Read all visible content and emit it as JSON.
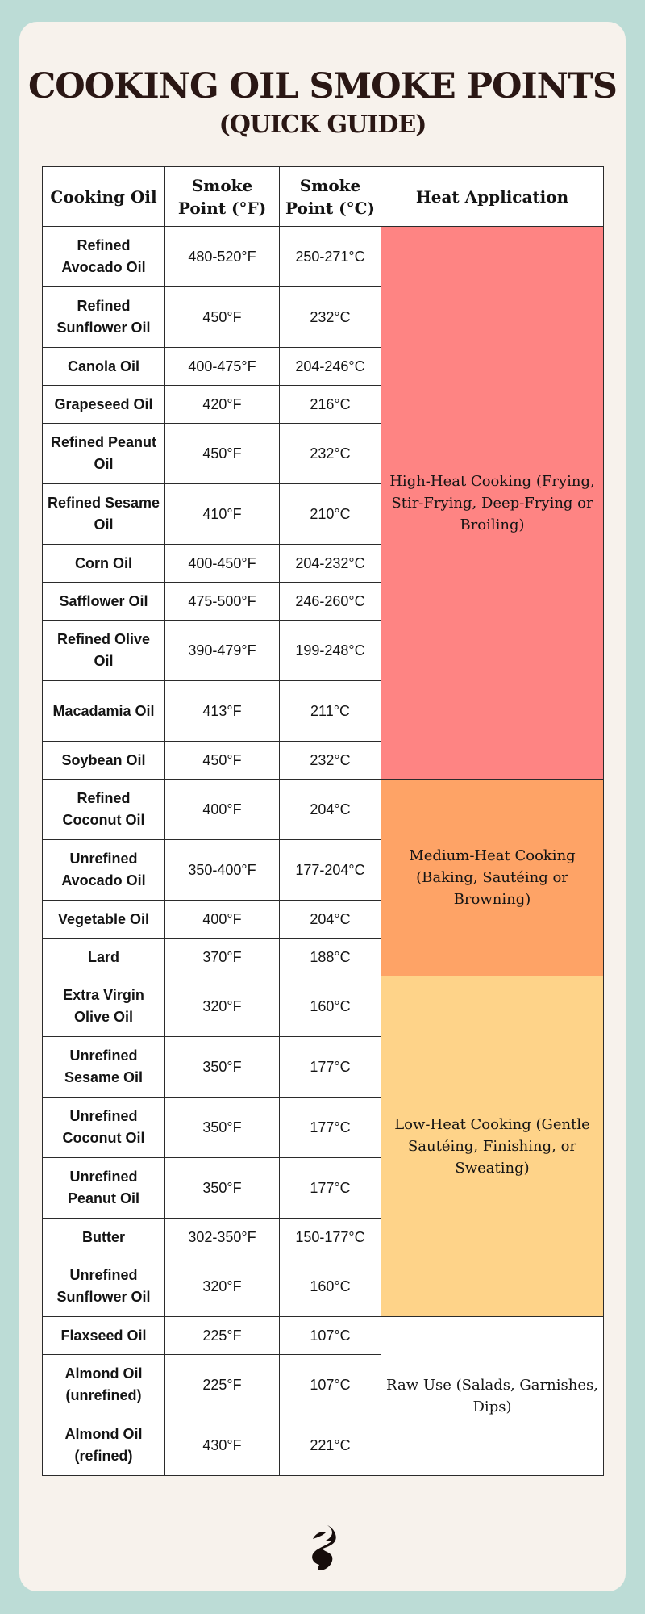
{
  "title": {
    "line1": "COOKING OIL SMOKE POINTS",
    "line2": "(QUICK GUIDE)"
  },
  "table": {
    "headers": [
      "Cooking Oil",
      "Smoke Point (°F)",
      "Smoke Point (°C)",
      "Heat Application"
    ],
    "rows": [
      {
        "oil": "Refined Avocado Oil",
        "f": "480-520°F",
        "c": "250-271°C"
      },
      {
        "oil": "Refined Sunflower Oil",
        "f": "450°F",
        "c": "232°C"
      },
      {
        "oil": "Canola Oil",
        "f": "400-475°F",
        "c": "204-246°C"
      },
      {
        "oil": "Grapeseed Oil",
        "f": "420°F",
        "c": "216°C"
      },
      {
        "oil": "Refined Peanut Oil",
        "f": "450°F",
        "c": "232°C"
      },
      {
        "oil": "Refined Sesame Oil",
        "f": "410°F",
        "c": "210°C"
      },
      {
        "oil": "Corn Oil",
        "f": "400-450°F",
        "c": "204-232°C"
      },
      {
        "oil": "Safflower Oil",
        "f": "475-500°F",
        "c": "246-260°C"
      },
      {
        "oil": "Refined Olive Oil",
        "f": "390-479°F",
        "c": "199-248°C"
      },
      {
        "oil": "Macadamia Oil",
        "f": "413°F",
        "c": "211°C"
      },
      {
        "oil": "Soybean Oil",
        "f": "450°F",
        "c": "232°C"
      },
      {
        "oil": "Refined Coconut Oil",
        "f": "400°F",
        "c": "204°C"
      },
      {
        "oil": "Unrefined Avocado Oil",
        "f": "350-400°F",
        "c": "177-204°C"
      },
      {
        "oil": "Vegetable Oil",
        "f": "400°F",
        "c": "204°C"
      },
      {
        "oil": "Lard",
        "f": "370°F",
        "c": "188°C"
      },
      {
        "oil": "Extra Virgin Olive Oil",
        "f": "320°F",
        "c": "160°C"
      },
      {
        "oil": "Unrefined Sesame Oil",
        "f": "350°F",
        "c": "177°C"
      },
      {
        "oil": "Unrefined Coconut Oil",
        "f": "350°F",
        "c": "177°C"
      },
      {
        "oil": "Unrefined Peanut Oil",
        "f": "350°F",
        "c": "177°C"
      },
      {
        "oil": "Butter",
        "f": "302-350°F",
        "c": "150-177°C"
      },
      {
        "oil": "Unrefined Sunflower Oil",
        "f": "320°F",
        "c": "160°C"
      },
      {
        "oil": "Flaxseed Oil",
        "f": "225°F",
        "c": "107°C"
      },
      {
        "oil": "Almond Oil (unrefined)",
        "f": "225°F",
        "c": "107°C"
      },
      {
        "oil": "Almond Oil (refined)",
        "f": "430°F",
        "c": "221°C"
      }
    ],
    "groups": [
      {
        "label": "High-Heat Cooking (Frying, Stir-Frying, Deep-Frying or Broiling)",
        "color": "#fe8483"
      },
      {
        "label": "Medium-Heat Cooking (Baking, Sautéing or Browning)",
        "color": "#fea366"
      },
      {
        "label": "Low-Heat Cooking (Gentle Sautéing, Finishing, or Sweating)",
        "color": "#fed389"
      },
      {
        "label": "Raw Use (Salads, Garnishes, Dips)",
        "color": "#ffffff"
      }
    ]
  },
  "colors": {
    "background": "#bcdcd6",
    "card": "#f7f2ec",
    "title": "#2a1714"
  },
  "footer": {
    "logo_icon": "flame-logo-icon"
  }
}
